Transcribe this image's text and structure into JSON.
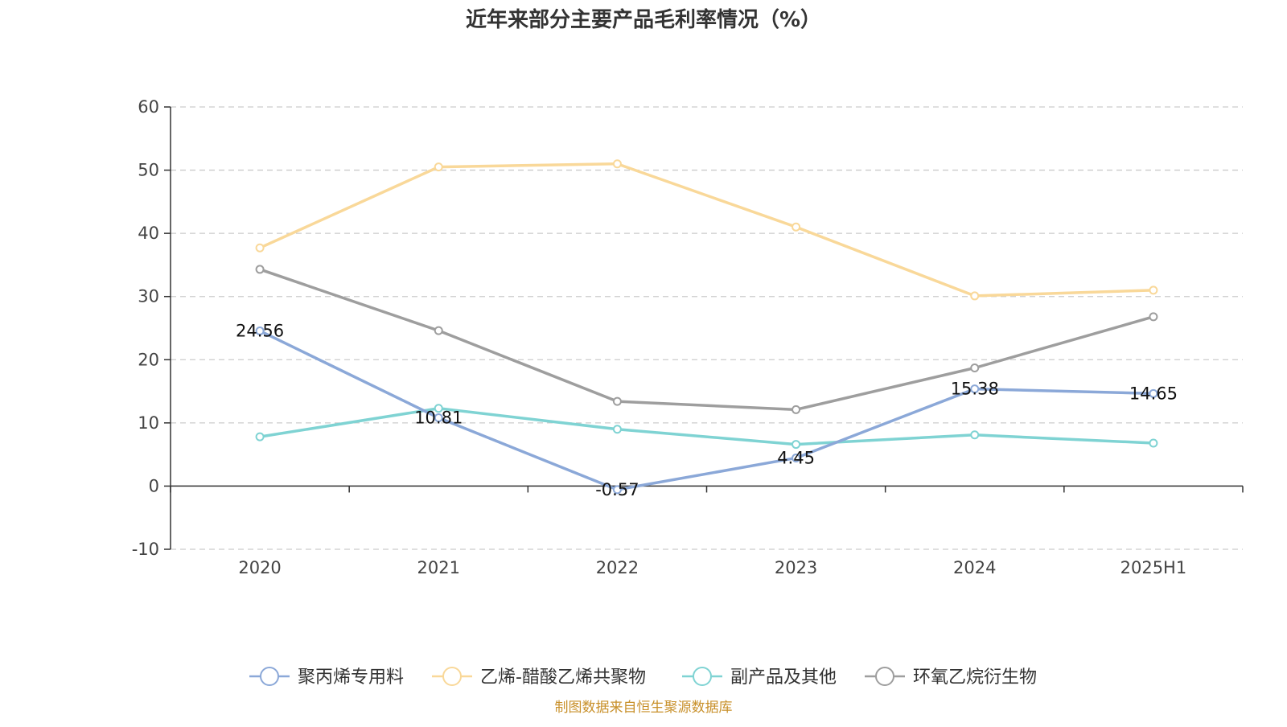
{
  "chart_data": {
    "type": "line",
    "title": "近年来部分主要产品毛利率情况（%）",
    "categories": [
      "2020",
      "2021",
      "2022",
      "2023",
      "2024",
      "2025H1"
    ],
    "ylim": [
      -10,
      60
    ],
    "yticks": [
      "-10",
      "0",
      "10",
      "20",
      "30",
      "40",
      "50",
      "60"
    ],
    "grid": true,
    "legend_position": "bottom",
    "series": [
      {
        "name": "聚丙烯专用料",
        "color": "#8ba8d8",
        "values": [
          24.56,
          10.81,
          -0.57,
          4.45,
          15.38,
          14.65
        ],
        "labels": [
          "24.56",
          "10.81",
          "-0.57",
          "4.45",
          "15.38",
          "14.65"
        ]
      },
      {
        "name": "乙烯-醋酸乙烯共聚物",
        "color": "#f9d899",
        "values": [
          37.7,
          50.5,
          51.0,
          41.0,
          30.1,
          31.0
        ]
      },
      {
        "name": "副产品及其他",
        "color": "#7fd3d3",
        "values": [
          7.8,
          12.3,
          9.0,
          6.6,
          8.1,
          6.8
        ]
      },
      {
        "name": "环氧乙烷衍生物",
        "color": "#9e9e9e",
        "values": [
          34.3,
          24.6,
          13.4,
          12.1,
          18.7,
          26.8
        ]
      }
    ],
    "source": "制图数据来自恒生聚源数据库"
  }
}
